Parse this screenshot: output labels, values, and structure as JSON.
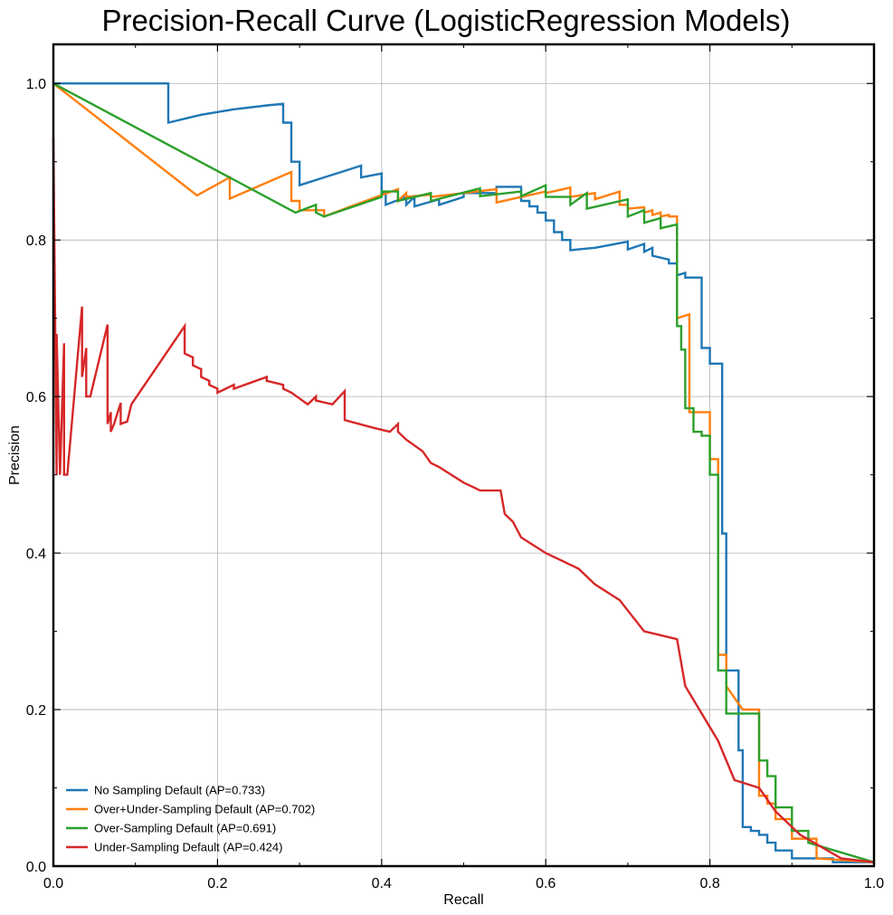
{
  "chart_data": {
    "type": "line",
    "title": "Precision-Recall Curve (LogisticRegression Models)",
    "xlabel": "Recall",
    "ylabel": "Precision",
    "xlim": [
      0.0,
      1.0
    ],
    "ylim": [
      0.0,
      1.05
    ],
    "xticks": [
      "0.0",
      "0.2",
      "0.4",
      "0.6",
      "0.8",
      "1.0"
    ],
    "yticks": [
      "0.0",
      "0.2",
      "0.4",
      "0.6",
      "0.8",
      "1.0"
    ],
    "grid": true,
    "legend_position": "lower-left",
    "series": [
      {
        "name": "No Sampling Default (AP=0.733)",
        "color": "#1f77b4",
        "x": [
          0.0,
          0.14,
          0.14,
          0.18,
          0.22,
          0.26,
          0.28,
          0.28,
          0.29,
          0.29,
          0.3,
          0.3,
          0.33,
          0.36,
          0.375,
          0.375,
          0.4,
          0.4,
          0.405,
          0.405,
          0.43,
          0.43,
          0.44,
          0.44,
          0.47,
          0.47,
          0.5,
          0.5,
          0.54,
          0.54,
          0.57,
          0.57,
          0.58,
          0.58,
          0.59,
          0.59,
          0.6,
          0.6,
          0.61,
          0.61,
          0.62,
          0.62,
          0.63,
          0.63,
          0.66,
          0.7,
          0.7,
          0.72,
          0.72,
          0.73,
          0.73,
          0.75,
          0.75,
          0.76,
          0.76,
          0.77,
          0.77,
          0.79,
          0.79,
          0.8,
          0.8,
          0.815,
          0.815,
          0.82,
          0.82,
          0.825,
          0.825,
          0.83,
          0.83,
          0.835,
          0.835,
          0.84,
          0.84,
          0.85,
          0.85,
          0.86,
          0.86,
          0.87,
          0.87,
          0.88,
          0.88,
          0.9,
          0.9,
          0.95,
          0.95,
          1.0
        ],
        "y": [
          1.0,
          1.0,
          0.95,
          0.96,
          0.967,
          0.972,
          0.974,
          0.95,
          0.95,
          0.9,
          0.9,
          0.87,
          0.88,
          0.89,
          0.895,
          0.88,
          0.885,
          0.86,
          0.86,
          0.845,
          0.855,
          0.845,
          0.855,
          0.843,
          0.852,
          0.845,
          0.855,
          0.86,
          0.86,
          0.868,
          0.868,
          0.85,
          0.85,
          0.843,
          0.843,
          0.835,
          0.835,
          0.825,
          0.825,
          0.81,
          0.81,
          0.8,
          0.8,
          0.787,
          0.79,
          0.798,
          0.788,
          0.795,
          0.785,
          0.79,
          0.78,
          0.775,
          0.77,
          0.77,
          0.755,
          0.758,
          0.752,
          0.752,
          0.662,
          0.662,
          0.642,
          0.642,
          0.425,
          0.425,
          0.25,
          0.25,
          0.25,
          0.25,
          0.25,
          0.25,
          0.148,
          0.148,
          0.05,
          0.05,
          0.045,
          0.045,
          0.04,
          0.04,
          0.03,
          0.03,
          0.02,
          0.02,
          0.01,
          0.01,
          0.005,
          0.005
        ]
      },
      {
        "name": "Over+Under-Sampling Default (AP=0.702)",
        "color": "#ff7f0e",
        "x": [
          0.0,
          0.175,
          0.215,
          0.215,
          0.29,
          0.29,
          0.3,
          0.3,
          0.33,
          0.33,
          0.36,
          0.42,
          0.42,
          0.43,
          0.43,
          0.46,
          0.46,
          0.54,
          0.54,
          0.6,
          0.6,
          0.63,
          0.63,
          0.66,
          0.66,
          0.69,
          0.69,
          0.7,
          0.7,
          0.72,
          0.72,
          0.73,
          0.73,
          0.74,
          0.74,
          0.75,
          0.75,
          0.76,
          0.76,
          0.775,
          0.775,
          0.8,
          0.8,
          0.81,
          0.81,
          0.82,
          0.82,
          0.84,
          0.84,
          0.86,
          0.86,
          0.87,
          0.87,
          0.88,
          0.88,
          0.9,
          0.9,
          0.93,
          0.93,
          1.0
        ],
        "y": [
          1.0,
          0.857,
          0.88,
          0.853,
          0.887,
          0.85,
          0.85,
          0.838,
          0.838,
          0.83,
          0.842,
          0.865,
          0.85,
          0.86,
          0.855,
          0.858,
          0.855,
          0.865,
          0.848,
          0.862,
          0.86,
          0.867,
          0.855,
          0.86,
          0.852,
          0.862,
          0.845,
          0.845,
          0.84,
          0.842,
          0.835,
          0.838,
          0.832,
          0.835,
          0.83,
          0.832,
          0.83,
          0.83,
          0.7,
          0.705,
          0.58,
          0.58,
          0.52,
          0.52,
          0.27,
          0.27,
          0.23,
          0.2,
          0.2,
          0.2,
          0.09,
          0.09,
          0.08,
          0.08,
          0.06,
          0.06,
          0.035,
          0.035,
          0.01,
          0.005
        ]
      },
      {
        "name": "Over-Sampling Default (AP=0.691)",
        "color": "#2ca02c",
        "x": [
          0.0,
          0.295,
          0.32,
          0.32,
          0.33,
          0.4,
          0.4,
          0.42,
          0.42,
          0.46,
          0.46,
          0.52,
          0.52,
          0.57,
          0.57,
          0.6,
          0.6,
          0.63,
          0.63,
          0.65,
          0.65,
          0.7,
          0.7,
          0.72,
          0.72,
          0.74,
          0.74,
          0.76,
          0.76,
          0.765,
          0.765,
          0.77,
          0.77,
          0.78,
          0.78,
          0.79,
          0.79,
          0.8,
          0.8,
          0.81,
          0.81,
          0.82,
          0.82,
          0.86,
          0.86,
          0.87,
          0.87,
          0.88,
          0.88,
          0.9,
          0.9,
          0.92,
          0.92,
          1.0
        ],
        "y": [
          1.0,
          0.835,
          0.845,
          0.835,
          0.83,
          0.855,
          0.862,
          0.862,
          0.85,
          0.86,
          0.85,
          0.866,
          0.856,
          0.862,
          0.856,
          0.87,
          0.855,
          0.855,
          0.845,
          0.86,
          0.84,
          0.852,
          0.83,
          0.838,
          0.822,
          0.828,
          0.815,
          0.82,
          0.69,
          0.69,
          0.66,
          0.66,
          0.585,
          0.585,
          0.555,
          0.555,
          0.55,
          0.55,
          0.5,
          0.5,
          0.25,
          0.25,
          0.195,
          0.195,
          0.135,
          0.135,
          0.115,
          0.115,
          0.075,
          0.075,
          0.045,
          0.045,
          0.03,
          0.005
        ]
      },
      {
        "name": "Under-Sampling Default (AP=0.424)",
        "color": "#d62728",
        "x": [
          0.0,
          0.004,
          0.004,
          0.008,
          0.013,
          0.013,
          0.017,
          0.017,
          0.035,
          0.035,
          0.04,
          0.04,
          0.045,
          0.045,
          0.066,
          0.066,
          0.07,
          0.07,
          0.074,
          0.074,
          0.082,
          0.082,
          0.09,
          0.09,
          0.095,
          0.095,
          0.16,
          0.16,
          0.17,
          0.17,
          0.18,
          0.18,
          0.19,
          0.19,
          0.2,
          0.2,
          0.22,
          0.22,
          0.26,
          0.26,
          0.28,
          0.28,
          0.29,
          0.29,
          0.31,
          0.31,
          0.32,
          0.32,
          0.34,
          0.34,
          0.355,
          0.355,
          0.39,
          0.39,
          0.41,
          0.41,
          0.42,
          0.42,
          0.43,
          0.43,
          0.45,
          0.45,
          0.46,
          0.46,
          0.47,
          0.47,
          0.5,
          0.5,
          0.51,
          0.51,
          0.52,
          0.52,
          0.545,
          0.545,
          0.55,
          0.55,
          0.56,
          0.56,
          0.57,
          0.57,
          0.6,
          0.6,
          0.64,
          0.64,
          0.66,
          0.66,
          0.69,
          0.69,
          0.72,
          0.72,
          0.76,
          0.76,
          0.77,
          0.77,
          0.81,
          0.81,
          0.83,
          0.83,
          0.86,
          0.86,
          0.88,
          0.88,
          0.91,
          0.91,
          0.96,
          0.96,
          1.0
        ],
        "y": [
          0.93,
          0.5,
          0.68,
          0.5,
          0.668,
          0.5,
          0.5,
          0.5,
          0.715,
          0.625,
          0.662,
          0.6,
          0.6,
          0.6,
          0.692,
          0.565,
          0.58,
          0.555,
          0.565,
          0.565,
          0.592,
          0.565,
          0.568,
          0.568,
          0.59,
          0.59,
          0.69,
          0.655,
          0.65,
          0.64,
          0.635,
          0.625,
          0.62,
          0.615,
          0.61,
          0.605,
          0.615,
          0.61,
          0.625,
          0.62,
          0.615,
          0.61,
          0.605,
          0.605,
          0.59,
          0.59,
          0.6,
          0.595,
          0.59,
          0.59,
          0.607,
          0.57,
          0.56,
          0.56,
          0.555,
          0.555,
          0.565,
          0.555,
          0.545,
          0.545,
          0.53,
          0.53,
          0.515,
          0.515,
          0.51,
          0.51,
          0.49,
          0.49,
          0.485,
          0.485,
          0.48,
          0.48,
          0.48,
          0.48,
          0.45,
          0.45,
          0.44,
          0.44,
          0.42,
          0.42,
          0.4,
          0.4,
          0.38,
          0.38,
          0.36,
          0.36,
          0.34,
          0.34,
          0.3,
          0.3,
          0.29,
          0.29,
          0.23,
          0.23,
          0.16,
          0.16,
          0.11,
          0.11,
          0.1,
          0.1,
          0.07,
          0.07,
          0.04,
          0.04,
          0.01,
          0.01,
          0.005
        ]
      }
    ]
  }
}
